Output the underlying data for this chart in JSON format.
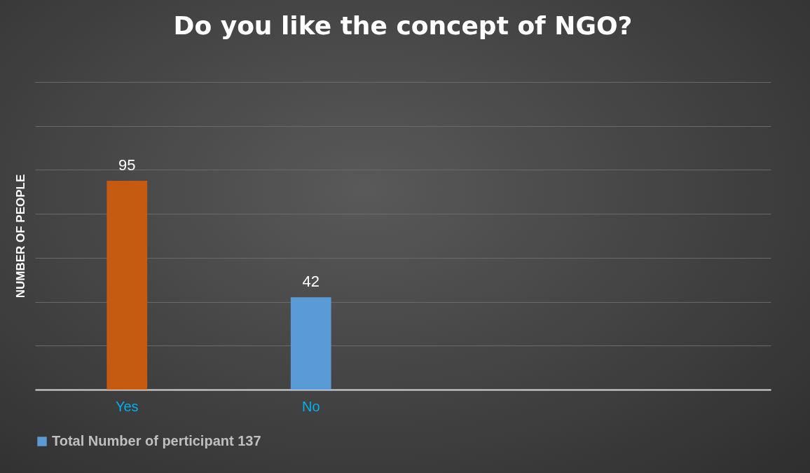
{
  "chart_data": {
    "type": "bar",
    "title": "Do you like the concept of NGO?",
    "ylabel": "NUMBER OF PEOPLE",
    "categories": [
      "Yes",
      "No",
      null,
      null
    ],
    "series": [
      {
        "name": "Total Number of perticipant 137",
        "color": "#5b9bd5",
        "colors": [
          "#c55a11",
          "#5b9bd5",
          null,
          null
        ],
        "values": [
          95,
          42,
          null,
          null
        ]
      }
    ],
    "ylim": [
      0,
      140
    ],
    "yticks": [
      {
        "value": 0,
        "label": null
      },
      {
        "value": 20,
        "label": null
      },
      {
        "value": 40,
        "label": null
      },
      {
        "value": 60,
        "label": null
      },
      {
        "value": 80,
        "label": null
      },
      {
        "value": 100,
        "label": null
      },
      {
        "value": 120,
        "label": null
      },
      {
        "value": 140,
        "label": null
      }
    ],
    "tick_labels": "x",
    "grid": "y",
    "data_labels": true,
    "legend": "bottom"
  }
}
